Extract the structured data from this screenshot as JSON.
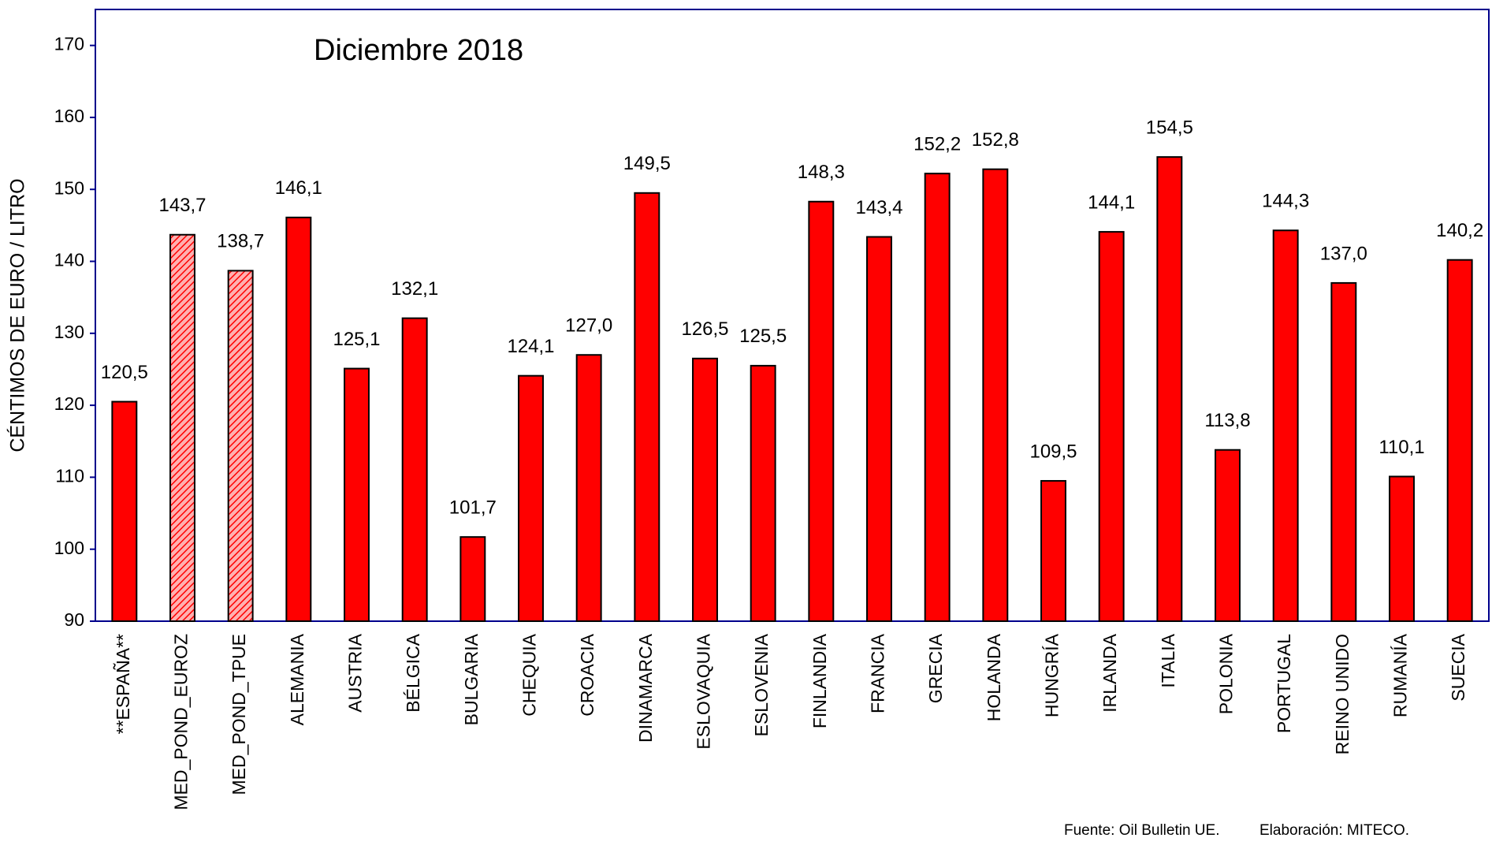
{
  "chart_data": {
    "type": "bar",
    "title": "Diciembre 2018",
    "y_label": "CÉNTIMOS DE EURO / LITRO",
    "source": "Fuente: Oil Bulletin UE.",
    "credit": "Elaboración: MITECO.",
    "categories": [
      "**ESPAÑA**",
      "MED_POND_EUROZ",
      "MED_POND_TPUE",
      "ALEMANIA",
      "AUSTRIA",
      "BÉLGICA",
      "BULGARIA",
      "CHEQUIA",
      "CROACIA",
      "DINAMARCA",
      "ESLOVAQUIA",
      "ESLOVENIA",
      "FINLANDIA",
      "FRANCIA",
      "GRECIA",
      "HOLANDA",
      "HUNGRÍA",
      "IRLANDA",
      "ITALIA",
      "POLONIA",
      "PORTUGAL",
      "REINO UNIDO",
      "RUMANÍA",
      "SUECIA"
    ],
    "values": [
      120.5,
      143.7,
      138.7,
      146.1,
      125.1,
      132.1,
      101.7,
      124.1,
      127.0,
      149.5,
      126.5,
      125.5,
      148.3,
      143.4,
      152.2,
      152.8,
      109.5,
      144.1,
      154.5,
      113.8,
      144.3,
      137.0,
      110.1,
      140.2
    ],
    "value_labels": [
      "120,5",
      "143,7",
      "138,7",
      "146,1",
      "125,1",
      "132,1",
      "101,7",
      "124,1",
      "127,0",
      "149,5",
      "126,5",
      "125,5",
      "148,3",
      "143,4",
      "152,2",
      "152,8",
      "109,5",
      "144,1",
      "154,5",
      "113,8",
      "144,3",
      "137,0",
      "110,1",
      "140,2"
    ],
    "bar_styles": [
      "solid",
      "hatched",
      "hatched",
      "solid",
      "solid",
      "solid",
      "solid",
      "solid",
      "solid",
      "solid",
      "solid",
      "solid",
      "solid",
      "solid",
      "solid",
      "solid",
      "solid",
      "solid",
      "solid",
      "solid",
      "solid",
      "solid",
      "solid",
      "solid"
    ],
    "color": "#ff0000",
    "ylim": [
      90,
      175
    ],
    "yticks": [
      90,
      100,
      110,
      120,
      130,
      140,
      150,
      160,
      170
    ],
    "grid": false
  }
}
